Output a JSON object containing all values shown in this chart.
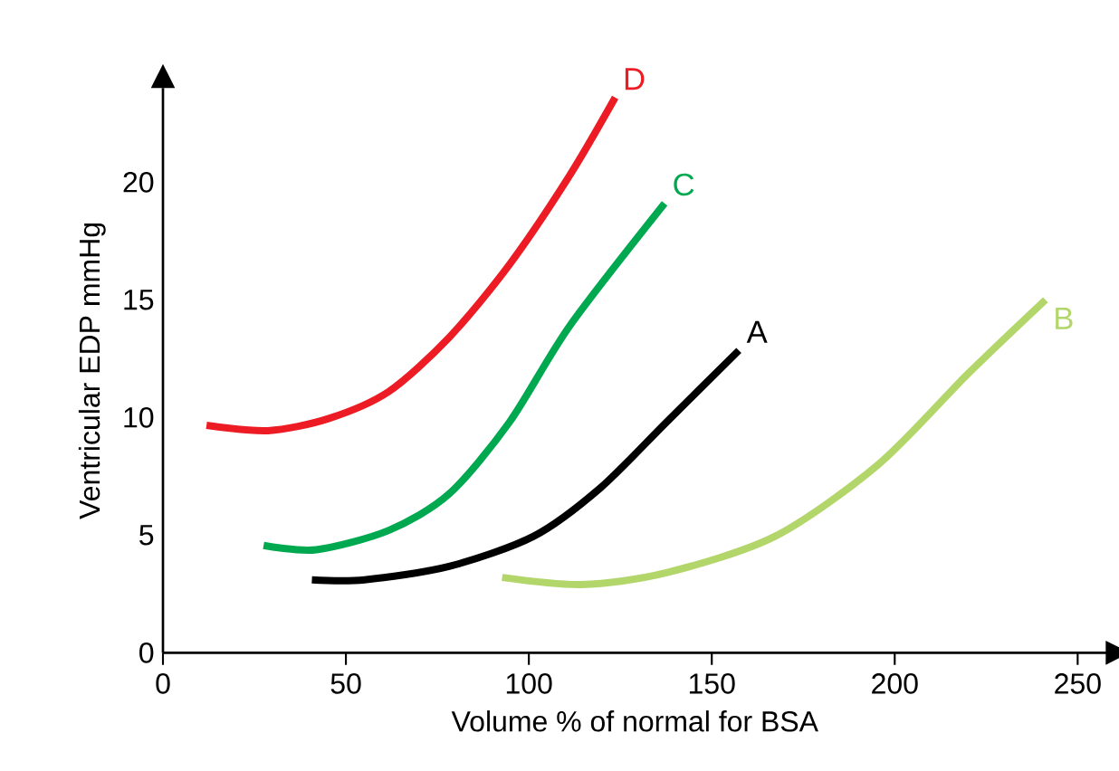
{
  "chart_data": {
    "type": "line",
    "xlabel": "Volume % of normal for BSA",
    "ylabel": "Ventricular EDP mmHg",
    "xlim": [
      0,
      258
    ],
    "ylim": [
      0,
      24
    ],
    "xticks": [
      0,
      50,
      100,
      150,
      200,
      250
    ],
    "yticks": [
      0,
      5,
      10,
      15,
      20
    ],
    "marker": "none",
    "line_style": "solid",
    "series": [
      {
        "name": "D",
        "color": "#ed1c24",
        "x": [
          11.9,
          28.7,
          45.2,
          61.7,
          78.2,
          94.7,
          111.2,
          123.6
        ],
        "values": [
          9.67,
          9.44,
          9.95,
          11.1,
          13.4,
          16.5,
          20.3,
          23.6
        ]
      },
      {
        "name": "C",
        "color": "#00a94f",
        "x": [
          27.5,
          41.9,
          61.7,
          78.2,
          94.7,
          111.2,
          137.1
        ],
        "values": [
          4.56,
          4.38,
          5.2,
          6.75,
          9.8,
          13.9,
          19.1
        ]
      },
      {
        "name": "A",
        "color": "#000000",
        "x": [
          40.7,
          55.1,
          78.2,
          101.3,
          119.5,
          137.6,
          157.4
        ],
        "values": [
          3.1,
          3.1,
          3.67,
          4.95,
          7.0,
          9.8,
          12.85
        ]
      },
      {
        "name": "B",
        "color": "#b3d66b",
        "x": [
          92.7,
          114.5,
          137.6,
          167.3,
          195.5,
          220.3,
          241.2
        ],
        "values": [
          3.2,
          2.9,
          3.4,
          4.95,
          8.0,
          11.9,
          15.0
        ]
      }
    ]
  }
}
